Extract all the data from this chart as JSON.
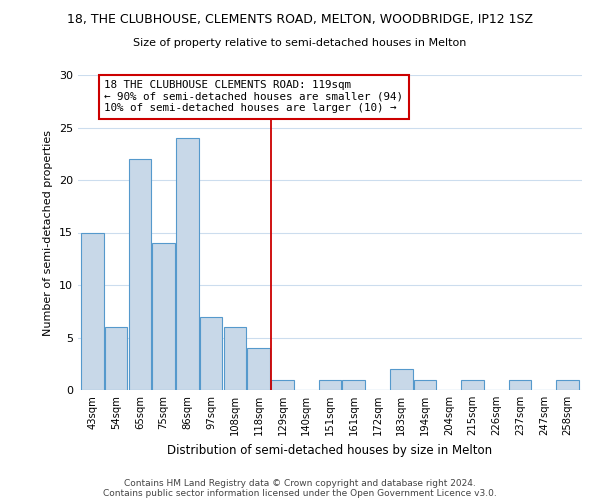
{
  "title_line1": "18, THE CLUBHOUSE, CLEMENTS ROAD, MELTON, WOODBRIDGE, IP12 1SZ",
  "title_line2": "Size of property relative to semi-detached houses in Melton",
  "xlabel": "Distribution of semi-detached houses by size in Melton",
  "ylabel": "Number of semi-detached properties",
  "categories": [
    "43sqm",
    "54sqm",
    "65sqm",
    "75sqm",
    "86sqm",
    "97sqm",
    "108sqm",
    "118sqm",
    "129sqm",
    "140sqm",
    "151sqm",
    "161sqm",
    "172sqm",
    "183sqm",
    "194sqm",
    "204sqm",
    "215sqm",
    "226sqm",
    "237sqm",
    "247sqm",
    "258sqm"
  ],
  "values": [
    15,
    6,
    22,
    14,
    24,
    7,
    6,
    4,
    1,
    0,
    1,
    1,
    0,
    2,
    1,
    0,
    1,
    0,
    1,
    0,
    1
  ],
  "bar_color": "#c8d8e8",
  "bar_edge_color": "#5599cc",
  "vline_x": 7.5,
  "vline_color": "#cc0000",
  "annotation_box_text": [
    "18 THE CLUBHOUSE CLEMENTS ROAD: 119sqm",
    "← 90% of semi-detached houses are smaller (94)",
    "10% of semi-detached houses are larger (10) →"
  ],
  "annotation_box_color": "#cc0000",
  "ylim": [
    0,
    30
  ],
  "yticks": [
    0,
    5,
    10,
    15,
    20,
    25,
    30
  ],
  "footer_line1": "Contains HM Land Registry data © Crown copyright and database right 2024.",
  "footer_line2": "Contains public sector information licensed under the Open Government Licence v3.0.",
  "background_color": "#ffffff",
  "grid_color": "#ccddee"
}
